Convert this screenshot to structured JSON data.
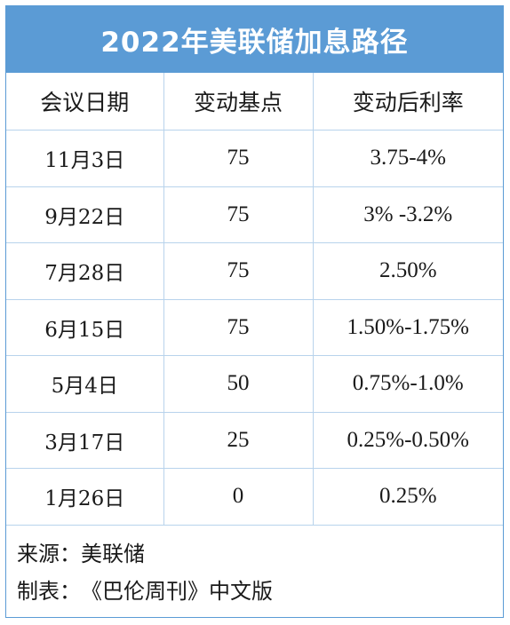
{
  "title": "2022年美联储加息路径",
  "table": {
    "headers": [
      "会议日期",
      "变动基点",
      "变动后利率"
    ],
    "rows": [
      [
        "11月3日",
        "75",
        "3.75-4%"
      ],
      [
        "9月22日",
        "75",
        "3% -3.2%"
      ],
      [
        "7月28日",
        "75",
        "2.50%"
      ],
      [
        "6月15日",
        "75",
        "1.50%-1.75%"
      ],
      [
        "5月4日",
        "50",
        "0.75%-1.0%"
      ],
      [
        "3月17日",
        "25",
        "0.25%-0.50%"
      ],
      [
        "1月26日",
        "0",
        "0.25%"
      ]
    ]
  },
  "footer": {
    "source_label": "来源：",
    "source_value": "美联储",
    "made_by_label": "制表：",
    "made_by_value": "《巴伦周刊》中文版"
  },
  "colors": {
    "accent": "#5b9bd5",
    "grid": "#b8d3ec",
    "text": "#1a1a1a"
  }
}
